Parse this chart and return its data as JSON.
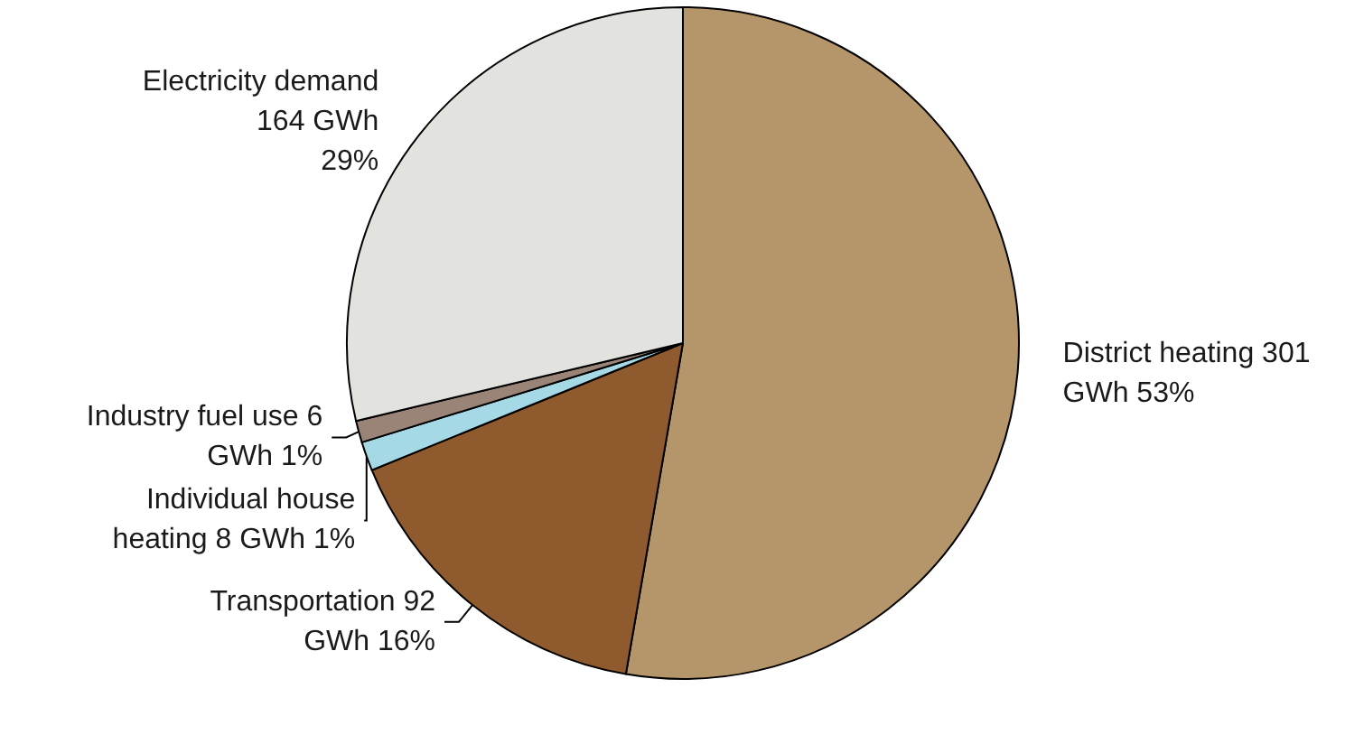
{
  "chart_data": {
    "type": "pie",
    "categories": [
      "District heating 301\nGWh 53%",
      "Transportation 92\nGWh 16%",
      "Individual house\nheating 8 GWh 1%",
      "Industry fuel use 6\nGWh 1%",
      "Electricity demand\n164 GWh\n29%"
    ],
    "values": [
      301,
      92,
      8,
      6,
      164
    ],
    "colors": [
      "#b5956a",
      "#8f5a2e",
      "#a6d9e6",
      "#9a8478",
      "#e2e2de"
    ],
    "legend": false
  }
}
